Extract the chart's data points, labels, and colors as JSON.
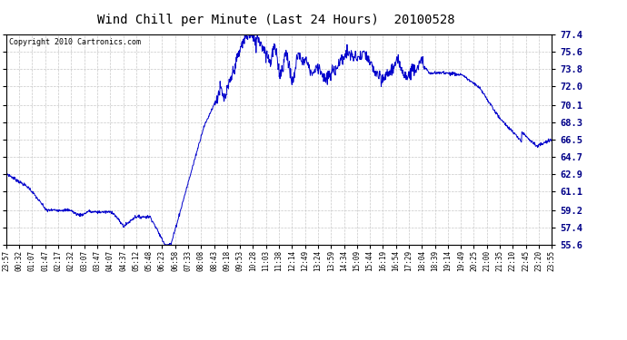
{
  "title": "Wind Chill per Minute (Last 24 Hours)  20100528",
  "copyright": "Copyright 2010 Cartronics.com",
  "yticks": [
    55.6,
    57.4,
    59.2,
    61.1,
    62.9,
    64.7,
    66.5,
    68.3,
    70.1,
    72.0,
    73.8,
    75.6,
    77.4
  ],
  "xtick_labels": [
    "23:57",
    "00:32",
    "01:07",
    "01:47",
    "02:17",
    "02:32",
    "03:07",
    "03:47",
    "04:07",
    "04:37",
    "05:12",
    "05:48",
    "06:23",
    "06:58",
    "07:33",
    "08:08",
    "08:43",
    "09:18",
    "09:53",
    "10:28",
    "11:03",
    "11:38",
    "12:14",
    "12:49",
    "13:24",
    "13:59",
    "14:34",
    "15:09",
    "15:44",
    "16:19",
    "16:54",
    "17:29",
    "18:04",
    "18:39",
    "19:14",
    "19:49",
    "20:25",
    "21:00",
    "21:35",
    "22:10",
    "22:45",
    "23:20",
    "23:55"
  ],
  "line_color": "#0000cc",
  "bg_color": "#ffffff",
  "grid_color": "#c8c8c8",
  "title_color": "#000000",
  "ymin": 55.6,
  "ymax": 77.4
}
